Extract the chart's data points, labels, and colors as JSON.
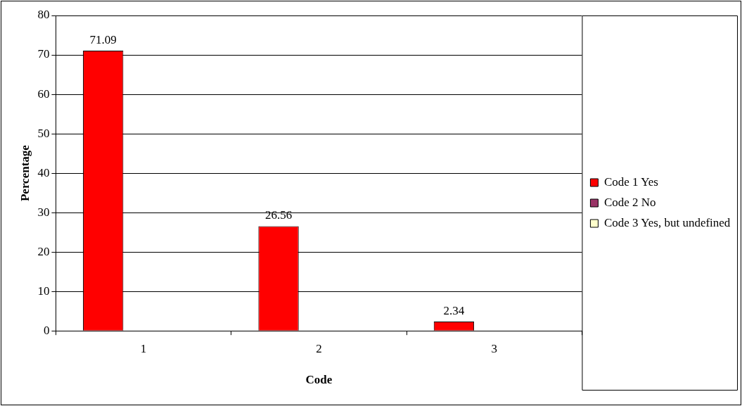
{
  "chart_data": {
    "type": "bar",
    "xlabel": "Code",
    "ylabel": "Percentage",
    "categories": [
      "1",
      "2",
      "3"
    ],
    "series": [
      {
        "name": "Code 1 Yes",
        "color": "#ff0000",
        "values": [
          71.09,
          26.56,
          2.34
        ]
      },
      {
        "name": "Code 2 No",
        "color": "#993366",
        "values": [
          null,
          null,
          null
        ]
      },
      {
        "name": "Code 3 Yes, but undefined",
        "color": "#ffffcc",
        "values": [
          null,
          null,
          null
        ]
      }
    ],
    "ylim": [
      0,
      80
    ],
    "yticks": [
      0,
      10,
      20,
      30,
      40,
      50,
      60,
      70,
      80
    ],
    "grid": "y",
    "legend": "right",
    "data_labels": true
  }
}
